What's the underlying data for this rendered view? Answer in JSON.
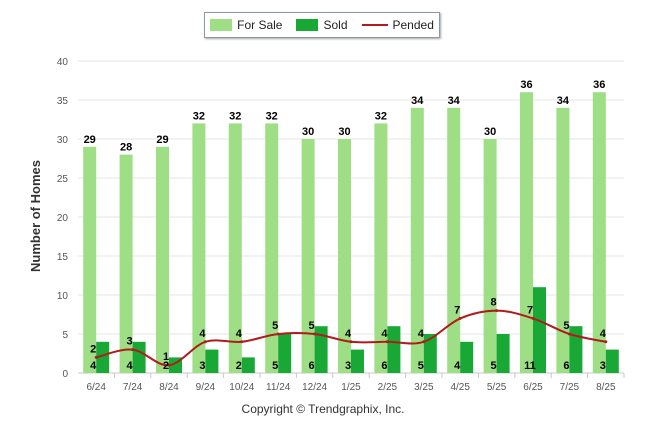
{
  "legend": {
    "items": [
      {
        "label": "For Sale",
        "color": "#9ede85",
        "kind": "bar"
      },
      {
        "label": "Sold",
        "color": "#19a836",
        "kind": "bar"
      },
      {
        "label": "Pended",
        "color": "#b01c1c",
        "kind": "line"
      }
    ]
  },
  "footer": {
    "text": "Copyright © Trendgraphix, Inc."
  },
  "chart_data": {
    "type": "bar",
    "ylabel": "Number of Homes",
    "xlabel": "",
    "ylim": [
      0,
      40
    ],
    "yticks": [
      0,
      5,
      10,
      15,
      20,
      25,
      30,
      35,
      40
    ],
    "grid": true,
    "legend_position": "top",
    "categories": [
      "6/24",
      "7/24",
      "8/24",
      "9/24",
      "10/24",
      "11/24",
      "12/24",
      "1/25",
      "2/25",
      "3/25",
      "4/25",
      "5/25",
      "6/25",
      "7/25",
      "8/25"
    ],
    "series": [
      {
        "name": "For Sale",
        "type": "bar",
        "color": "#9ede85",
        "values": [
          29,
          28,
          29,
          32,
          32,
          32,
          30,
          30,
          32,
          34,
          34,
          30,
          36,
          34,
          36
        ]
      },
      {
        "name": "Sold",
        "type": "bar",
        "color": "#19a836",
        "values": [
          4,
          4,
          2,
          3,
          2,
          5,
          6,
          3,
          6,
          5,
          4,
          5,
          11,
          6,
          3
        ]
      },
      {
        "name": "Pended",
        "type": "line",
        "color": "#b01c1c",
        "values": [
          2,
          3,
          1,
          4,
          4,
          5,
          5,
          4,
          4,
          4,
          7,
          8,
          7,
          5,
          4
        ]
      }
    ]
  }
}
